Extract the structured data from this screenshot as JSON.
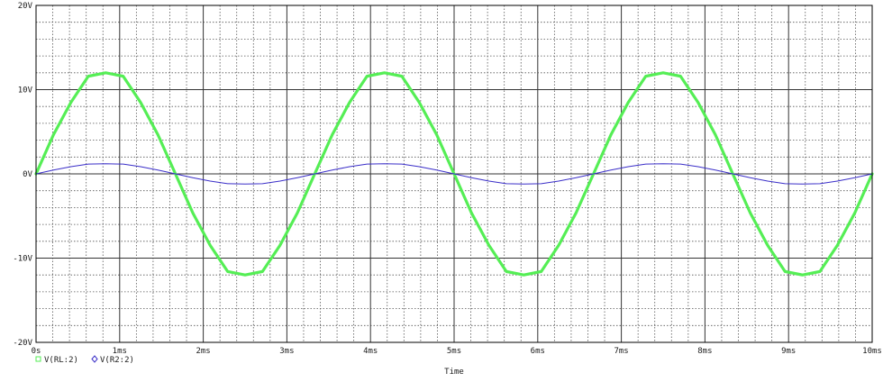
{
  "chart_data": {
    "type": "line",
    "title": "",
    "xlabel": "Time",
    "ylabel": "",
    "xlim": [
      0,
      10
    ],
    "ylim": [
      -20,
      20
    ],
    "x_unit": "ms",
    "y_unit": "V",
    "grid": true,
    "legend_position": "bottom-left",
    "x_ticks": [
      "0s",
      "1ms",
      "2ms",
      "3ms",
      "4ms",
      "5ms",
      "6ms",
      "7ms",
      "8ms",
      "9ms",
      "10ms"
    ],
    "y_ticks": [
      "20V",
      "10V",
      "0V",
      "-10V",
      "-20V"
    ],
    "series": [
      {
        "name": "V(RL:2)",
        "color": "#55ee55",
        "marker": "square",
        "x": [
          0,
          0.208,
          0.417,
          0.625,
          0.833,
          1.042,
          1.25,
          1.458,
          1.667,
          1.875,
          2.083,
          2.292,
          2.5,
          2.708,
          2.917,
          3.125,
          3.333,
          3.542,
          3.75,
          3.958,
          4.167,
          4.375,
          4.583,
          4.792,
          5.0,
          5.208,
          5.417,
          5.625,
          5.833,
          6.042,
          6.25,
          6.458,
          6.667,
          6.875,
          7.083,
          7.292,
          7.5,
          7.708,
          7.917,
          8.125,
          8.333,
          8.542,
          8.75,
          8.958,
          9.167,
          9.375,
          9.583,
          9.792,
          10.0
        ],
        "y": [
          0,
          4.64,
          8.49,
          11.59,
          12.0,
          11.59,
          8.49,
          4.64,
          0,
          -4.64,
          -8.49,
          -11.59,
          -12.0,
          -11.59,
          -8.49,
          -4.64,
          0,
          4.64,
          8.49,
          11.59,
          12.0,
          11.59,
          8.49,
          4.64,
          0,
          -4.64,
          -8.49,
          -11.59,
          -12.0,
          -11.59,
          -8.49,
          -4.64,
          0,
          4.64,
          8.49,
          11.59,
          12.0,
          11.59,
          8.49,
          4.64,
          0,
          -4.64,
          -8.49,
          -11.59,
          -12.0,
          -11.59,
          -8.49,
          -4.64,
          0
        ]
      },
      {
        "name": "V(R2:2)",
        "color": "#3a2ec8",
        "marker": "diamond",
        "x": [
          0,
          0.208,
          0.417,
          0.625,
          0.833,
          1.042,
          1.25,
          1.458,
          1.667,
          1.875,
          2.083,
          2.292,
          2.5,
          2.708,
          2.917,
          3.125,
          3.333,
          3.542,
          3.75,
          3.958,
          4.167,
          4.375,
          4.583,
          4.792,
          5.0,
          5.208,
          5.417,
          5.625,
          5.833,
          6.042,
          6.25,
          6.458,
          6.667,
          6.875,
          7.083,
          7.292,
          7.5,
          7.708,
          7.917,
          8.125,
          8.333,
          8.542,
          8.75,
          8.958,
          9.167,
          9.375,
          9.583,
          9.792,
          10.0
        ],
        "y": [
          0,
          0.46,
          0.85,
          1.16,
          1.2,
          1.16,
          0.85,
          0.46,
          0,
          -0.46,
          -0.85,
          -1.16,
          -1.2,
          -1.16,
          -0.85,
          -0.46,
          0,
          0.46,
          0.85,
          1.16,
          1.2,
          1.16,
          0.85,
          0.46,
          0,
          -0.46,
          -0.85,
          -1.16,
          -1.2,
          -1.16,
          -0.85,
          -0.46,
          0,
          0.46,
          0.85,
          1.16,
          1.2,
          1.16,
          0.85,
          0.46,
          0,
          -0.46,
          -0.85,
          -1.16,
          -1.2,
          -1.16,
          -0.85,
          -0.46,
          0
        ]
      }
    ]
  }
}
